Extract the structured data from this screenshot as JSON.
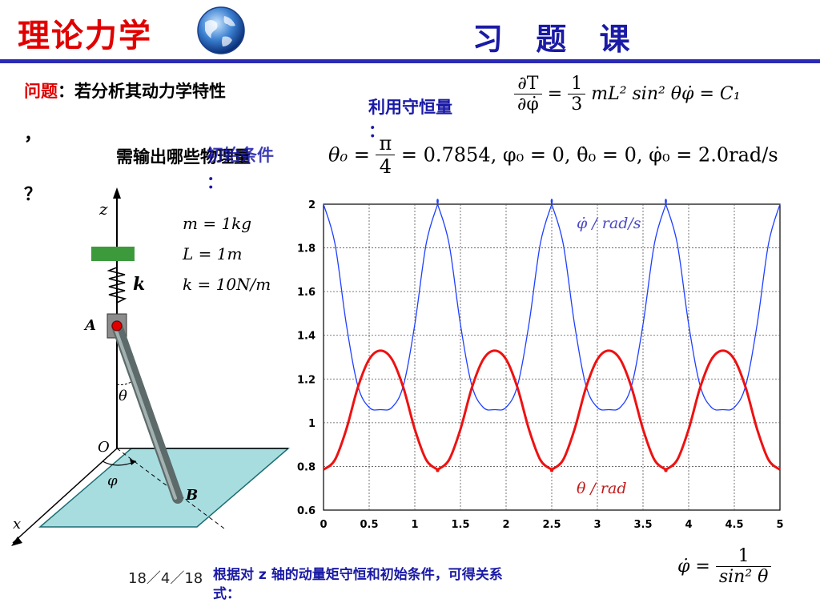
{
  "header": {
    "title": "理论力学",
    "subtitle": "习 题 课"
  },
  "question": {
    "label": "问题",
    "text": "：若分析其动力学特性",
    "comma": "，",
    "mark": "？",
    "need": "需输出哪些物理量",
    "init_conditions_label": "初始条件",
    "colon": "："
  },
  "conserve": {
    "label": "利用守恒量",
    "colon": "："
  },
  "equations": {
    "eq1_num": "∂T",
    "eq1_den": "∂φ̇",
    "eq1_rhs": "= (1/3) mL² sin² θ φ̇ = C₁",
    "eq1_frac_num": "1",
    "eq1_frac_den": "3",
    "eq1_tail": "mL² sin² θφ̇ = C₁",
    "eq2_lhs": "θ₀ =",
    "eq2_num": "π",
    "eq2_den": "4",
    "eq2_rhs": "= 0.7854, φ₀ = 0, θ̇₀ = 0, φ̇₀ = 2.0rad/s",
    "eq3_lhs": "φ̇ =",
    "eq3_num": "1",
    "eq3_den": "sin² θ"
  },
  "params": {
    "m": "m = 1kg",
    "L": "L = 1m",
    "k": "k = 10N/m"
  },
  "diagram": {
    "z": "z",
    "k": "k",
    "A": "A",
    "theta": "θ",
    "O": "O",
    "phi": "φ",
    "B": "B",
    "x": "x"
  },
  "footer": {
    "date": "18／4／18",
    "note_line1": "根据对 z 轴的动量矩守恒和初始条件，可得关系",
    "note_line2": "式："
  },
  "colors": {
    "title_red": "#e00000",
    "accent_blue": "#1a1aa6",
    "series_blue": "#1f3fff",
    "series_red": "#ee1111",
    "plane_fill": "#a8dde0",
    "block_green": "#3c9a3c"
  },
  "chart_data": {
    "type": "line",
    "xlim": [
      0,
      5
    ],
    "ylim": [
      0.6,
      2
    ],
    "x_ticks": [
      "0",
      "0.5",
      "1",
      "1.5",
      "2",
      "2.5",
      "3",
      "3.5",
      "4",
      "4.5",
      "5"
    ],
    "y_ticks": [
      "0.6",
      "0.8",
      "1",
      "1.2",
      "1.4",
      "1.6",
      "1.8",
      "2"
    ],
    "grid": true,
    "series": [
      {
        "name": "φ̇ / rad/s",
        "color": "#1f3fff",
        "x": [
          0,
          0.125,
          0.25,
          0.375,
          0.5,
          0.625,
          0.75,
          0.875,
          1.0,
          1.125,
          1.25
        ],
        "y": [
          2.0,
          1.82,
          1.45,
          1.17,
          1.07,
          1.06,
          1.07,
          1.17,
          1.45,
          1.82,
          2.0
        ],
        "period": 1.25
      },
      {
        "name": "θ / rad",
        "color": "#ee1111",
        "x": [
          0,
          0.125,
          0.25,
          0.375,
          0.5,
          0.625,
          0.75,
          0.875,
          1.0,
          1.125,
          1.25
        ],
        "y": [
          0.785,
          0.83,
          0.97,
          1.16,
          1.29,
          1.33,
          1.29,
          1.16,
          0.97,
          0.83,
          0.785
        ],
        "period": 1.25
      }
    ],
    "annotations": [
      "φ̇ / rad/s",
      "θ / rad"
    ]
  }
}
